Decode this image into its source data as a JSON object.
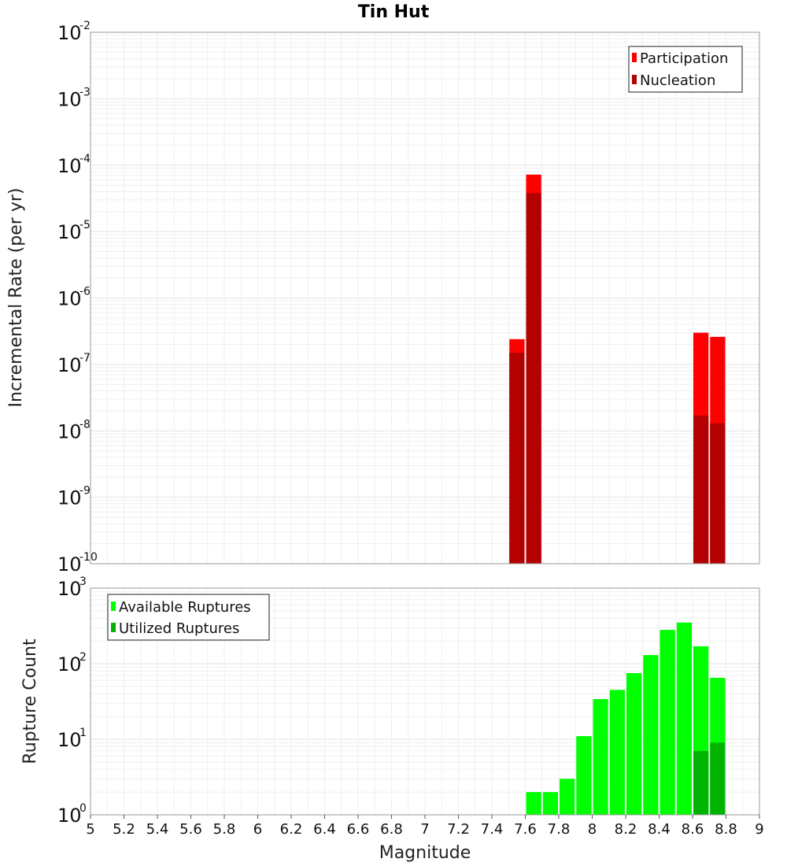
{
  "title": "Tin Hut",
  "colors": {
    "participation": "#ff0000",
    "nucleation": "#b30000",
    "available": "#00ff00",
    "utilized": "#00b300"
  },
  "chart_data": [
    {
      "type": "bar",
      "ylabel": "Incremental Rate (per yr)",
      "yscale": "log",
      "ylim_exp": [
        -10,
        -2
      ],
      "y_tick_exponents": [
        "-10",
        "-9",
        "-8",
        "-7",
        "-6",
        "-5",
        "-4",
        "-3",
        "-2"
      ],
      "grid": true,
      "legend_position": "top-right",
      "series": [
        {
          "name": "Participation",
          "color_key": "participation",
          "x": [
            7.55,
            7.65,
            8.65,
            8.75
          ],
          "values": [
            2.4e-07,
            7.2e-05,
            3e-07,
            2.6e-07
          ]
        },
        {
          "name": "Nucleation",
          "color_key": "nucleation",
          "x": [
            7.55,
            7.65,
            8.65,
            8.75
          ],
          "values": [
            1.5e-07,
            3.8e-05,
            1.7e-08,
            1.3e-08
          ]
        }
      ]
    },
    {
      "type": "bar",
      "ylabel": "Rupture Count",
      "xlabel": "Magnitude",
      "yscale": "log",
      "ylim_exp": [
        0,
        3
      ],
      "y_tick_exponents": [
        "0",
        "1",
        "2",
        "3"
      ],
      "xlim": [
        5,
        9
      ],
      "x_ticks": [
        "5",
        "5.2",
        "5.4",
        "5.6",
        "5.8",
        "6",
        "6.2",
        "6.4",
        "6.6",
        "6.8",
        "7",
        "7.2",
        "7.4",
        "7.6",
        "7.8",
        "8",
        "8.2",
        "8.4",
        "8.6",
        "8.8",
        "9"
      ],
      "grid": true,
      "legend_position": "top-left",
      "series": [
        {
          "name": "Available Ruptures",
          "color_key": "available",
          "x": [
            7.35,
            7.55,
            7.65,
            7.75,
            7.85,
            7.95,
            8.05,
            8.15,
            8.25,
            8.35,
            8.45,
            8.55,
            8.65,
            8.75
          ],
          "values": [
            1,
            1,
            2,
            2,
            3,
            11,
            34,
            45,
            75,
            130,
            280,
            350,
            170,
            65
          ]
        },
        {
          "name": "Utilized Ruptures",
          "color_key": "utilized",
          "x": [
            7.55,
            7.65,
            8.25,
            8.65,
            8.75
          ],
          "values": [
            1,
            1,
            1,
            7,
            9
          ]
        }
      ]
    }
  ]
}
